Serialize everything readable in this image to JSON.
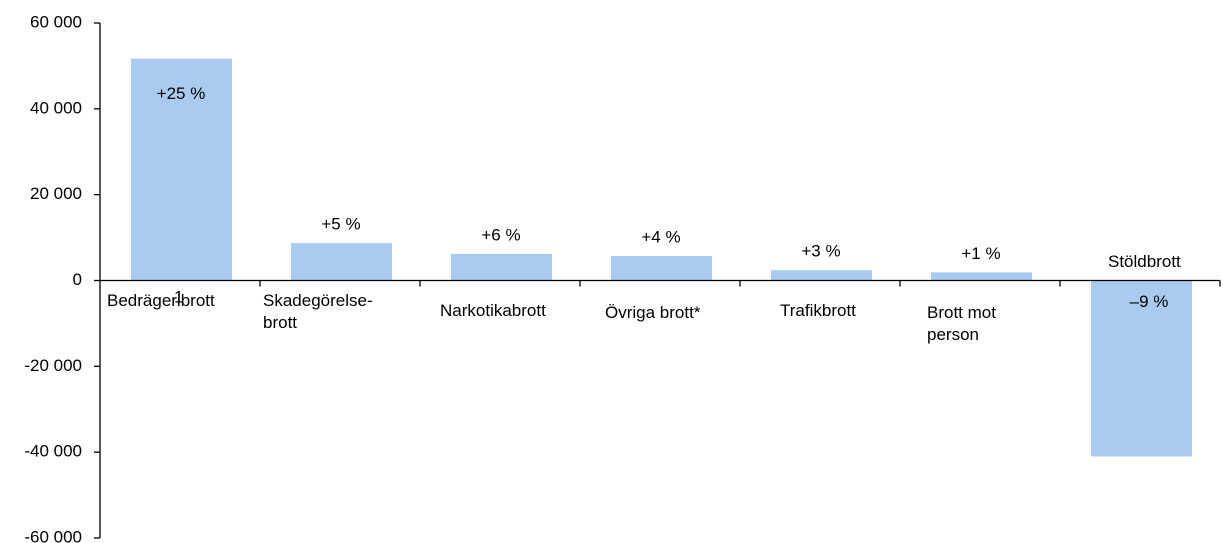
{
  "chart_data": {
    "type": "bar",
    "categories": [
      [
        "Bedrägeribrott"
      ],
      [
        "Skadegörelse-",
        "brott"
      ],
      [
        "Narkotikabrott"
      ],
      [
        "Övriga brott*"
      ],
      [
        "Trafikbrott"
      ],
      [
        "Brott mot",
        "person"
      ],
      [
        "Stöldbrott"
      ]
    ],
    "footnote_mark": "1",
    "values": [
      51700,
      8700,
      6200,
      5700,
      2400,
      1900,
      -41000
    ],
    "annotations": [
      "+25 %",
      "+5 %",
      "+6 %",
      "+4 %",
      "+3 %",
      "+1 %",
      "–9 %"
    ],
    "color": "#a9cbf0",
    "ylim": [
      -60000,
      60000
    ],
    "yticks": [
      {
        "value": -60000,
        "label": "-60 000"
      },
      {
        "value": -40000,
        "label": "-40 000"
      },
      {
        "value": -20000,
        "label": "-20 000"
      },
      0,
      {
        "value": 20000,
        "label": "20 000"
      },
      {
        "value": 40000,
        "label": "40 000"
      },
      {
        "value": 60000,
        "label": "60 000"
      }
    ]
  }
}
